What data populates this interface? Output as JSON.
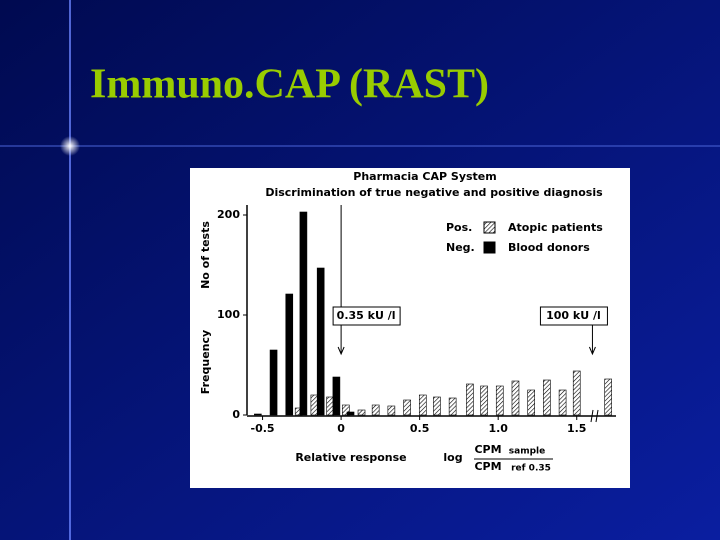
{
  "slide": {
    "title": "Immuno.CAP (RAST)"
  },
  "chart_data": {
    "type": "bar",
    "title": "Pharmacia CAP System",
    "subtitle": "Discrimination of true negative and positive diagnosis",
    "y_labels": [
      "No of tests",
      "Frequency"
    ],
    "x_label": "Relative response",
    "x_formula": {
      "prefix": "log",
      "numerator": "CPM",
      "numerator_sub": "sample",
      "denominator": "CPM",
      "denominator_sub": "ref 0.35"
    },
    "annotations": [
      {
        "text": "0.35 kU /l",
        "x": 0
      },
      {
        "text": "100 kU /l",
        "x": 1.6
      }
    ],
    "series": [
      {
        "name": "Atopic patients",
        "key": "Pos.",
        "color": "#000000",
        "hatch": true,
        "x": [
          -0.27,
          -0.17,
          -0.07,
          0.03,
          0.13,
          0.22,
          0.32,
          0.42,
          0.52,
          0.61,
          0.71,
          0.82,
          0.91,
          1.01,
          1.11,
          1.21,
          1.31,
          1.41,
          1.5,
          1.7
        ],
        "values": [
          7,
          20,
          18,
          10,
          5,
          10,
          9,
          15,
          20,
          18,
          17,
          31,
          29,
          29,
          34,
          25,
          35,
          25,
          44,
          36
        ]
      },
      {
        "name": "Blood donors",
        "key": "Neg.",
        "color": "#000000",
        "hatch": false,
        "x": [
          -0.53,
          -0.43,
          -0.33,
          -0.24,
          -0.13,
          -0.03,
          0.06
        ],
        "values": [
          1,
          65,
          121,
          203,
          147,
          38,
          3
        ]
      }
    ],
    "xlim": [
      -0.58,
      1.75
    ],
    "ylim": [
      0,
      210
    ],
    "xticks": [
      -0.5,
      0,
      0.5,
      {
        "value": 1,
        "label": "1.0"
      },
      1.5
    ],
    "yticks": [
      0,
      100,
      200
    ]
  }
}
